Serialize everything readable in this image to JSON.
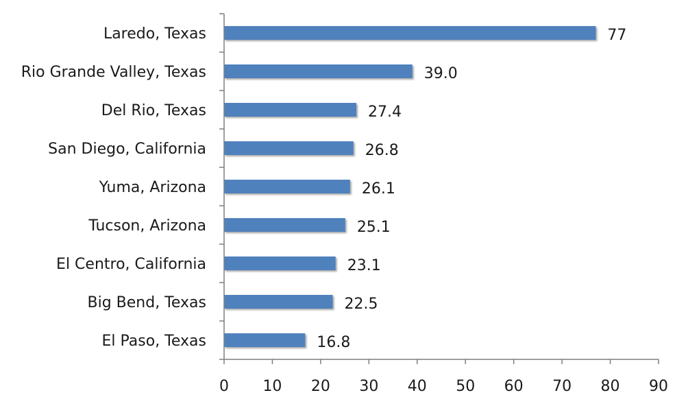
{
  "chart_data": {
    "type": "bar",
    "orientation": "horizontal",
    "categories": [
      "Laredo, Texas",
      "Rio Grande Valley, Texas",
      "Del Rio, Texas",
      "San Diego, California",
      "Yuma, Arizona",
      "Tucson, Arizona",
      "El Centro, California",
      "Big Bend, Texas",
      "El Paso, Texas"
    ],
    "values": [
      77,
      39.0,
      27.4,
      26.8,
      26.1,
      25.1,
      23.1,
      22.5,
      16.8
    ],
    "value_labels": [
      "77",
      "39.0",
      "27.4",
      "26.8",
      "26.1",
      "25.1",
      "23.1",
      "22.5",
      "16.8"
    ],
    "x_ticks": [
      "0",
      "10",
      "20",
      "30",
      "40",
      "50",
      "60",
      "70",
      "80",
      "90"
    ],
    "xlim": [
      0,
      90
    ],
    "title": "",
    "xlabel": "",
    "ylabel": "",
    "grid": false,
    "bar_color": "#4f81bd"
  }
}
